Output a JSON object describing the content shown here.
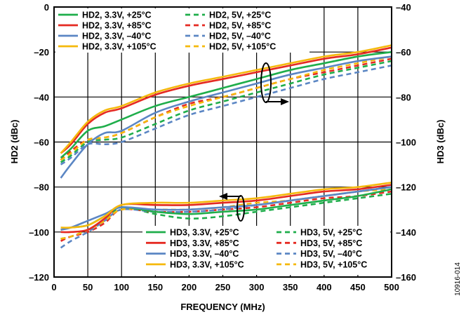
{
  "figure_id": "10916-014",
  "chart_data": {
    "type": "line",
    "title": "",
    "xlabel": "FREQUENCY (MHz)",
    "ylabel_left": "HD2 (dBc)",
    "ylabel_right": "HD3 (dBc)",
    "xlim": [
      0,
      500
    ],
    "ylim_left": [
      -120,
      0
    ],
    "ylim_right": [
      -160,
      -40
    ],
    "x_ticks": [
      "0",
      "50",
      "100",
      "150",
      "200",
      "250",
      "300",
      "350",
      "400",
      "450",
      "500"
    ],
    "y_left_ticks": [
      "0",
      "–20",
      "–40",
      "–60",
      "–80",
      "–100",
      "–120"
    ],
    "y_right_ticks": [
      "–40",
      "–60",
      "–80",
      "–100",
      "–120",
      "–140",
      "–160"
    ],
    "grid": true,
    "x": [
      10,
      25,
      50,
      75,
      100,
      150,
      200,
      250,
      300,
      350,
      400,
      450,
      500
    ],
    "series": [
      {
        "name": "HD2, 3.3V, +25°C",
        "axis": "left",
        "color": "#1fae4b",
        "dash": "solid",
        "values": [
          -67,
          -63,
          -55,
          -53,
          -50,
          -44,
          -40,
          -36,
          -32,
          -28,
          -25,
          -22,
          -20
        ]
      },
      {
        "name": "HD2, 3.3V, +85°C",
        "axis": "left",
        "color": "#e52a22",
        "dash": "solid",
        "values": [
          -65,
          -61,
          -52,
          -47,
          -45,
          -39,
          -35,
          -32,
          -29,
          -26,
          -23,
          -21,
          -18
        ]
      },
      {
        "name": "HD2, 3.3V, –40°C",
        "axis": "left",
        "color": "#5b86c4",
        "dash": "solid",
        "values": [
          -76,
          -70,
          -61,
          -56,
          -55,
          -47,
          -42,
          -38,
          -34,
          -30,
          -27,
          -24,
          -22
        ]
      },
      {
        "name": "HD2, 3.3V, +105°C",
        "axis": "left",
        "color": "#f5b90d",
        "dash": "solid",
        "values": [
          -65,
          -60,
          -51,
          -46,
          -44,
          -38,
          -34,
          -31,
          -28,
          -25,
          -22,
          -20,
          -17
        ]
      },
      {
        "name": "HD2, 5V, +25°C",
        "axis": "left",
        "color": "#1fae4b",
        "dash": "dashed",
        "values": [
          -69,
          -66,
          -60,
          -59,
          -58,
          -52,
          -46,
          -42,
          -38,
          -34,
          -30,
          -27,
          -24
        ]
      },
      {
        "name": "HD2, 5V, +85°C",
        "axis": "left",
        "color": "#e52a22",
        "dash": "dashed",
        "values": [
          -68,
          -64,
          -59,
          -58,
          -56,
          -49,
          -43,
          -40,
          -36,
          -32,
          -29,
          -26,
          -23
        ]
      },
      {
        "name": "HD2, 5V, –40°C",
        "axis": "left",
        "color": "#5b86c4",
        "dash": "dashed",
        "values": [
          -70,
          -67,
          -61,
          -61,
          -60,
          -54,
          -48,
          -44,
          -40,
          -36,
          -32,
          -29,
          -26
        ]
      },
      {
        "name": "HD2, 5V, +105°C",
        "axis": "left",
        "color": "#f5b90d",
        "dash": "dashed",
        "values": [
          -68,
          -65,
          -59,
          -58,
          -56,
          -49,
          -44,
          -40,
          -36,
          -32,
          -28,
          -25,
          -22
        ]
      },
      {
        "name": "HD3, 3.3V, +25°C",
        "axis": "right",
        "color": "#1fae4b",
        "dash": "solid",
        "values": [
          -139,
          -138,
          -137,
          -133,
          -129,
          -131,
          -132,
          -131,
          -130,
          -128,
          -126,
          -124,
          -121
        ]
      },
      {
        "name": "HD3, 3.3V, +85°C",
        "axis": "right",
        "color": "#e52a22",
        "dash": "solid",
        "values": [
          -140,
          -140,
          -139,
          -134,
          -128,
          -128,
          -128,
          -127,
          -126,
          -124,
          -122,
          -121,
          -119
        ]
      },
      {
        "name": "HD3, 3.3V, –40°C",
        "axis": "right",
        "color": "#5b86c4",
        "dash": "solid",
        "values": [
          -139,
          -138,
          -135,
          -132,
          -129,
          -130,
          -130,
          -129,
          -128,
          -126,
          -124,
          -122,
          -120
        ]
      },
      {
        "name": "HD3, 3.3V, +105°C",
        "axis": "right",
        "color": "#f5b90d",
        "dash": "solid",
        "values": [
          -138,
          -138,
          -137,
          -133,
          -128,
          -127,
          -127,
          -126,
          -125,
          -123,
          -121,
          -120,
          -118
        ]
      },
      {
        "name": "HD3, 5V, +25°C",
        "axis": "right",
        "color": "#1fae4b",
        "dash": "dashed",
        "values": [
          -143,
          -142,
          -139,
          -135,
          -129,
          -132,
          -134,
          -133,
          -131,
          -129,
          -127,
          -125,
          -123
        ]
      },
      {
        "name": "HD3, 5V, +85°C",
        "axis": "right",
        "color": "#e52a22",
        "dash": "dashed",
        "values": [
          -144,
          -142,
          -140,
          -136,
          -130,
          -131,
          -131,
          -130,
          -129,
          -127,
          -125,
          -124,
          -122
        ]
      },
      {
        "name": "HD3, 5V, –40°C",
        "axis": "right",
        "color": "#5b86c4",
        "dash": "dashed",
        "values": [
          -147,
          -144,
          -140,
          -135,
          -130,
          -131,
          -131,
          -130,
          -128,
          -126,
          -124,
          -122,
          -120
        ]
      },
      {
        "name": "HD3, 5V, +105°C",
        "axis": "right",
        "color": "#f5b90d",
        "dash": "dashed",
        "values": [
          -143,
          -142,
          -139,
          -135,
          -130,
          -130,
          -130,
          -129,
          -127,
          -126,
          -124,
          -122,
          -121
        ]
      }
    ],
    "legends": [
      {
        "placement": "top-left",
        "items": [
          "HD2, 3.3V, +25°C",
          "HD2, 3.3V, +85°C",
          "HD2, 3.3V, –40°C",
          "HD2, 3.3V, +105°C",
          "HD2, 5V, +25°C",
          "HD2, 5V, +85°C",
          "HD2, 5V, –40°C",
          "HD2, 5V, +105°C"
        ]
      },
      {
        "placement": "bottom-right",
        "items": [
          "HD3, 3.3V, +25°C",
          "HD3, 3.3V, +85°C",
          "HD3, 3.3V, –40°C",
          "HD3, 3.3V, +105°C",
          "HD3, 5V, +25°C",
          "HD3, 5V, +85°C",
          "HD3, 5V, –40°C",
          "HD3, 5V, +105°C"
        ]
      }
    ]
  }
}
